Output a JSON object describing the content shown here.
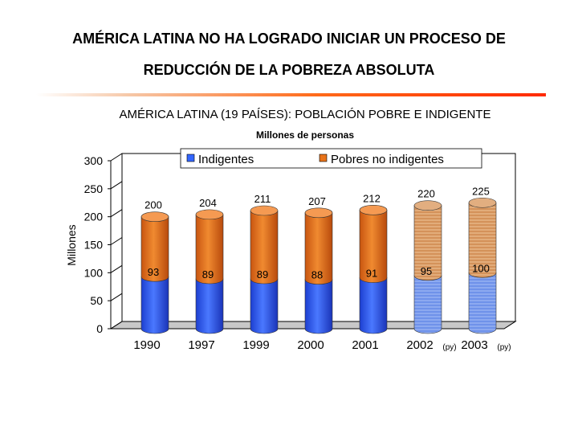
{
  "slide": {
    "title_line1": "AMÉRICA LATINA NO HA LOGRADO INICIAR UN PROCESO DE",
    "title_line2": "REDUCCIÓN DE LA POBREZA ABSOLUTA"
  },
  "chart_data": {
    "type": "bar",
    "stacked": true,
    "title": "AMÉRICA LATINA (19 PAÍSES): POBLACIÓN POBRE E INDIGENTE",
    "subtitle": "Millones de personas",
    "ylabel": "Millones",
    "ylim": [
      0,
      300
    ],
    "yticks": [
      0,
      50,
      100,
      150,
      200,
      250,
      300
    ],
    "categories": [
      "1990",
      "1997",
      "1999",
      "2000",
      "2001",
      "2002",
      "2003"
    ],
    "category_notes": [
      "",
      "",
      "",
      "",
      "",
      "(py)",
      "(py)"
    ],
    "projected": [
      false,
      false,
      false,
      false,
      false,
      true,
      true
    ],
    "series": [
      {
        "name": "Indigentes",
        "color": "#3366ff",
        "values": [
          93,
          89,
          89,
          88,
          91,
          95,
          100
        ]
      },
      {
        "name": "Pobres no indigentes",
        "color": "#e8731a",
        "values": [
          107,
          115,
          122,
          119,
          121,
          125,
          125
        ]
      }
    ],
    "indigentes_labels": [
      "93",
      "89",
      "89",
      "88",
      "91",
      "95",
      "100"
    ],
    "total_labels": [
      "200",
      "204",
      "211",
      "207",
      "212",
      "220",
      "225"
    ]
  }
}
